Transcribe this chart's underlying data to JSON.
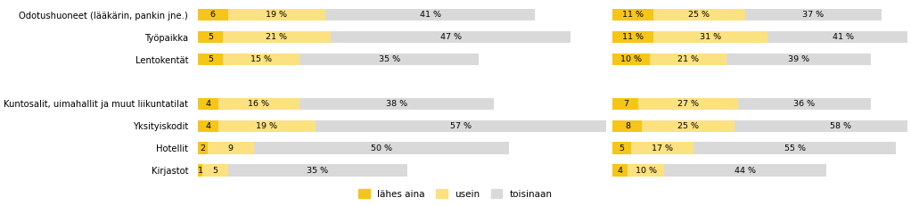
{
  "categories": [
    "Odotushuoneet (lääkärin, pankin jne.)",
    "Työpaikka",
    "Lentokentät",
    "",
    "Kuntosalit, uimahallit ja muut liikuntatilat",
    "Yksityiskodit",
    "Hotellit",
    "Kirjastot"
  ],
  "left_lahes_aina": [
    6,
    5,
    5,
    0,
    4,
    4,
    2,
    1
  ],
  "left_usein": [
    19,
    21,
    15,
    0,
    16,
    19,
    9,
    5
  ],
  "left_toisinaan": [
    41,
    47,
    35,
    0,
    38,
    57,
    50,
    35
  ],
  "right_lahes_aina": [
    11,
    11,
    10,
    0,
    7,
    8,
    5,
    4
  ],
  "right_usein": [
    25,
    31,
    21,
    0,
    27,
    25,
    17,
    10
  ],
  "right_toisinaan": [
    37,
    41,
    39,
    0,
    36,
    58,
    55,
    44
  ],
  "color_lahes_aina": "#f5c518",
  "color_usein": "#fce180",
  "color_toisinaan": "#d9d9d9",
  "legend_labels": [
    "lähes aina",
    "usein",
    "toisinaan"
  ],
  "bar_height": 0.55,
  "left_xlim": 80,
  "right_xlim": 80
}
